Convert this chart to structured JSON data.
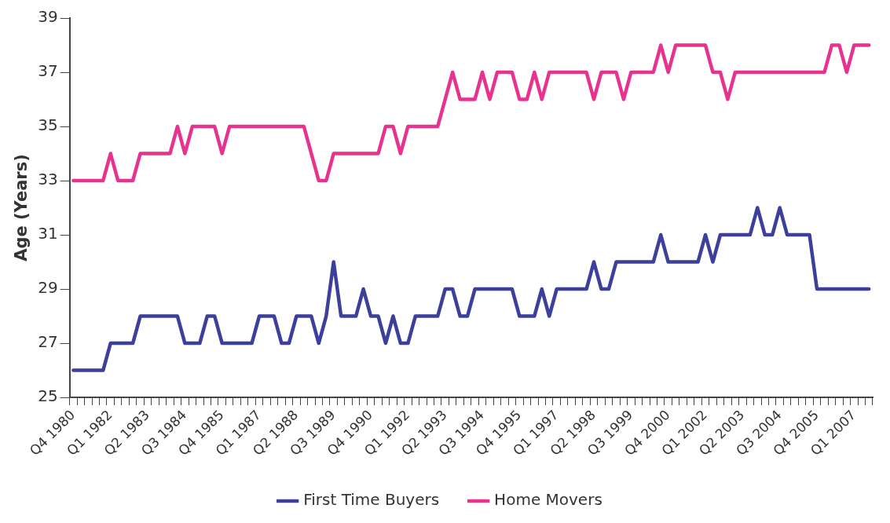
{
  "chart_data": {
    "type": "line",
    "ylabel": "Age (Years)",
    "categories": [
      "Q4 1980",
      null,
      null,
      null,
      null,
      "Q1 1982",
      null,
      null,
      null,
      null,
      "Q2 1983",
      null,
      null,
      null,
      null,
      "Q3 1984",
      null,
      null,
      null,
      null,
      "Q4 1985",
      null,
      null,
      null,
      null,
      "Q1 1987",
      null,
      null,
      null,
      null,
      "Q2 1988",
      null,
      null,
      null,
      null,
      "Q3 1989",
      null,
      null,
      null,
      null,
      "Q4 1990",
      null,
      null,
      null,
      null,
      "Q1 1992",
      null,
      null,
      null,
      null,
      "Q2 1993",
      null,
      null,
      null,
      null,
      "Q3 1994",
      null,
      null,
      null,
      null,
      "Q4 1995",
      null,
      null,
      null,
      null,
      "Q1 1997",
      null,
      null,
      null,
      null,
      "Q2 1998",
      null,
      null,
      null,
      null,
      "Q3 1999",
      null,
      null,
      null,
      null,
      "Q4 2000",
      null,
      null,
      null,
      null,
      "Q1 2002",
      null,
      null,
      null,
      null,
      "Q2 2003",
      null,
      null,
      null,
      null,
      "Q3 2004",
      null,
      null,
      null,
      null,
      "Q4 2005",
      null,
      null,
      null,
      null,
      "Q1 2007",
      null,
      null
    ],
    "series": [
      {
        "name": "First Time Buyers",
        "color": "#3c3f9c",
        "values": [
          26,
          26,
          26,
          26,
          26,
          27,
          27,
          27,
          27,
          28,
          28,
          28,
          28,
          28,
          28,
          27,
          27,
          27,
          28,
          28,
          27,
          27,
          27,
          27,
          27,
          28,
          28,
          28,
          27,
          27,
          28,
          28,
          28,
          27,
          28,
          30,
          28,
          28,
          28,
          29,
          28,
          28,
          27,
          28,
          27,
          27,
          28,
          28,
          28,
          28,
          29,
          29,
          28,
          28,
          29,
          29,
          29,
          29,
          29,
          29,
          28,
          28,
          28,
          29,
          28,
          29,
          29,
          29,
          29,
          29,
          30,
          29,
          29,
          30,
          30,
          30,
          30,
          30,
          30,
          31,
          30,
          30,
          30,
          30,
          30,
          31,
          30,
          31,
          31,
          31,
          31,
          31,
          32,
          31,
          31,
          32,
          31,
          31,
          31,
          31,
          29,
          29,
          29,
          29,
          29,
          29,
          29,
          29
        ]
      },
      {
        "name": "Home Movers",
        "color": "#e8328f",
        "values": [
          33,
          33,
          33,
          33,
          33,
          34,
          33,
          33,
          33,
          34,
          34,
          34,
          34,
          34,
          35,
          34,
          35,
          35,
          35,
          35,
          34,
          35,
          35,
          35,
          35,
          35,
          35,
          35,
          35,
          35,
          35,
          35,
          34,
          33,
          33,
          34,
          34,
          34,
          34,
          34,
          34,
          34,
          35,
          35,
          34,
          35,
          35,
          35,
          35,
          35,
          36,
          37,
          36,
          36,
          36,
          37,
          36,
          37,
          37,
          37,
          36,
          36,
          37,
          36,
          37,
          37,
          37,
          37,
          37,
          37,
          36,
          37,
          37,
          37,
          36,
          37,
          37,
          37,
          37,
          38,
          37,
          38,
          38,
          38,
          38,
          38,
          37,
          37,
          36,
          37,
          37,
          37,
          37,
          37,
          37,
          37,
          37,
          37,
          37,
          37,
          37,
          37,
          38,
          38,
          37,
          38,
          38,
          38
        ]
      }
    ],
    "ylim": [
      25,
      39
    ],
    "yticks": [
      25,
      27,
      29,
      31,
      33,
      35,
      37,
      39
    ],
    "legend": "bottom",
    "marker": "none",
    "line_style": "solid"
  }
}
